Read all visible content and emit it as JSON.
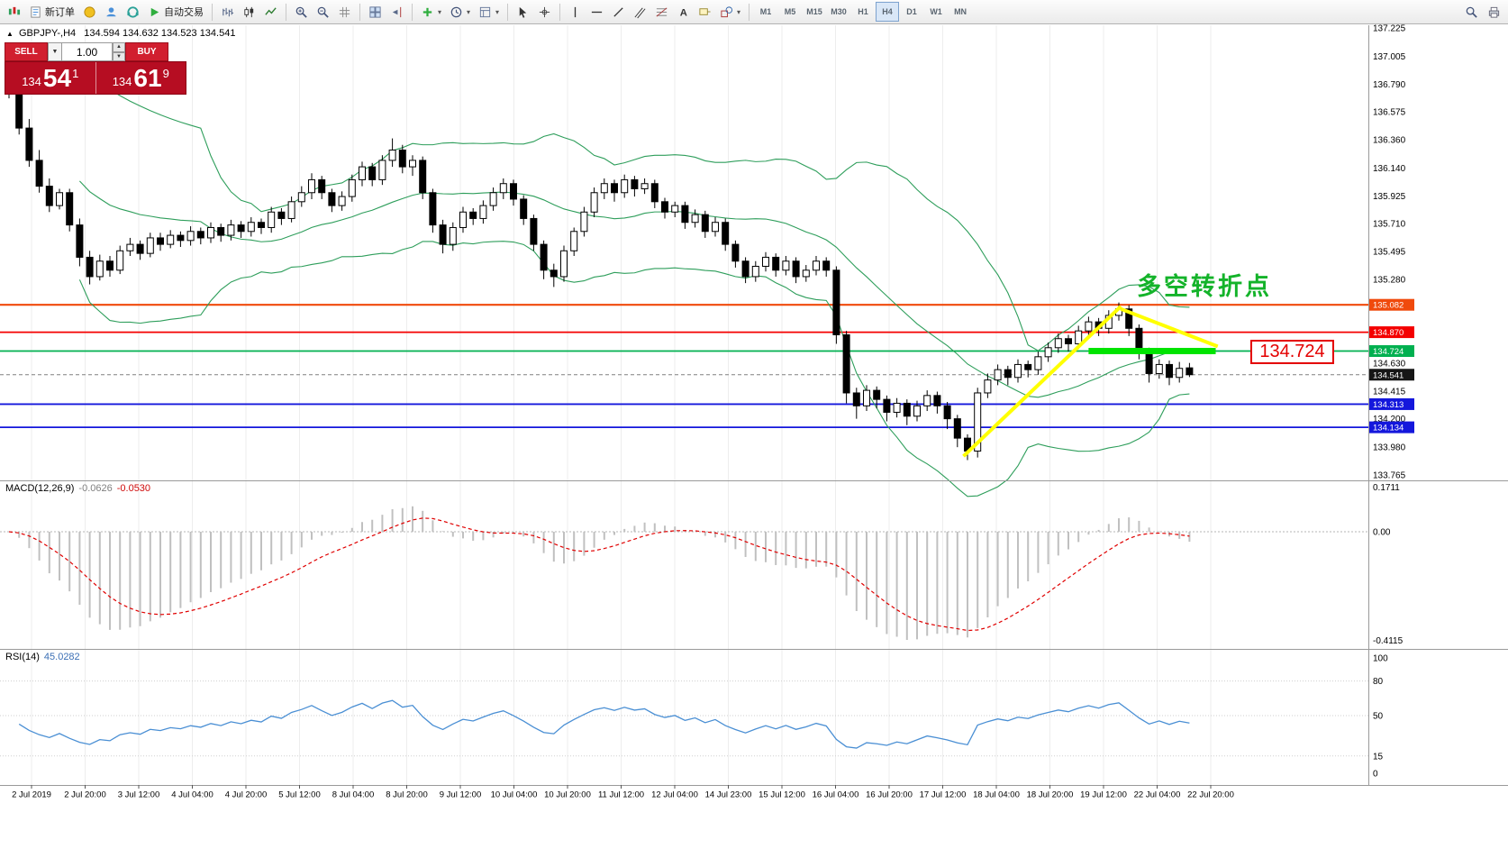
{
  "toolbar": {
    "new_order_label": "新订单",
    "autotrading_label": "自动交易",
    "timeframes": [
      "M1",
      "M5",
      "M15",
      "M30",
      "H1",
      "H4",
      "D1",
      "W1",
      "MN"
    ],
    "active_timeframe": "H4"
  },
  "symbol_header": {
    "symbol": "GBPJPY-,H4",
    "ohlc": "134.594 134.632 134.523 134.541"
  },
  "trade_panel": {
    "sell_label": "SELL",
    "buy_label": "BUY",
    "volume": "1.00",
    "sell_price_prefix": "134",
    "sell_price_big": "54",
    "sell_price_sup": "1",
    "buy_price_prefix": "134",
    "buy_price_big": "61",
    "buy_price_sup": "9"
  },
  "chart_data": {
    "type": "candlestick",
    "symbol": "GBPJPY",
    "timeframe": "H4",
    "title": "GBPJPY-,H4",
    "ohlc_current": {
      "open": 134.594,
      "high": 134.632,
      "low": 134.523,
      "close": 134.541
    },
    "price_axis": {
      "top_price": 137.225,
      "bottom_price": 133.765,
      "grid": "vertical-only"
    },
    "price_ticks": [
      137.225,
      137.005,
      136.79,
      136.575,
      136.36,
      136.14,
      135.925,
      135.71,
      135.495,
      135.28,
      134.63,
      134.415,
      134.2,
      133.98,
      133.765
    ],
    "levels": [
      {
        "price": 135.082,
        "label": "135.082",
        "color": "#f04a0c",
        "width": 2.2
      },
      {
        "price": 134.87,
        "label": "134.870",
        "color": "#f40000",
        "width": 1.8
      },
      {
        "price": 134.724,
        "label": "134.724",
        "color": "#00b050",
        "width": 1.8
      },
      {
        "price": 134.313,
        "label": "134.313",
        "color": "#1417dc",
        "width": 1.8
      },
      {
        "price": 134.134,
        "label": "134.134",
        "color": "#1417dc",
        "width": 1.8
      }
    ],
    "bid": {
      "price": 134.541,
      "label": "134.541",
      "badge_color": "#161616"
    },
    "annotations": {
      "turning_point_text": "多空转折点",
      "price_callout": "134.724",
      "trendline_color": "#ffff00",
      "support_bar_color": "#00e400",
      "trendlines": [
        {
          "i1": 94.6,
          "p1": 133.91,
          "i2": 110.2,
          "p2": 135.07
        },
        {
          "i1": 110.2,
          "p1": 135.05,
          "i2": 119.8,
          "p2": 134.76
        }
      ],
      "support_bar": {
        "price": 134.724,
        "i1": 107,
        "i2": 119.6
      }
    },
    "indicators": {
      "bollinger": {
        "period": 20,
        "deviation": 2,
        "color": "#2e9e5b"
      },
      "macd": {
        "name": "MACD(12,26,9)",
        "value_main": "-0.0626",
        "value_signal": "-0.0530",
        "scale_max": "0.1711",
        "scale_zero": "0.00",
        "scale_min": "-0.4115",
        "histogram_color": "#c0c0c0",
        "signal_color": "#e00000"
      },
      "rsi": {
        "name": "RSI(14)",
        "value": "45.0282",
        "color": "#4a8fd4",
        "scale": [
          100,
          80,
          50,
          15,
          0
        ],
        "grid_levels": [
          80,
          50,
          15
        ]
      }
    },
    "time_labels": [
      "2 Jul 2019",
      "2 Jul 20:00",
      "3 Jul 12:00",
      "4 Jul 04:00",
      "4 Jul 20:00",
      "5 Jul 12:00",
      "8 Jul 04:00",
      "8 Jul 20:00",
      "9 Jul 12:00",
      "10 Jul 04:00",
      "10 Jul 20:00",
      "11 Jul 12:00",
      "12 Jul 04:00",
      "14 Jul 23:00",
      "15 Jul 12:00",
      "16 Jul 04:00",
      "16 Jul 20:00",
      "17 Jul 12:00",
      "18 Jul 04:00",
      "18 Jul 20:00",
      "19 Jul 12:00",
      "22 Jul 04:00",
      "22 Jul 20:00"
    ],
    "candles": [
      [
        136.95,
        137.0,
        136.68,
        136.72
      ],
      [
        136.72,
        136.78,
        136.4,
        136.45
      ],
      [
        136.45,
        136.52,
        136.15,
        136.2
      ],
      [
        136.2,
        136.28,
        135.95,
        136.0
      ],
      [
        136.0,
        136.06,
        135.8,
        135.85
      ],
      [
        135.85,
        135.98,
        135.82,
        135.95
      ],
      [
        135.95,
        135.98,
        135.65,
        135.7
      ],
      [
        135.7,
        135.75,
        135.38,
        135.45
      ],
      [
        135.45,
        135.5,
        135.24,
        135.3
      ],
      [
        135.3,
        135.47,
        135.27,
        135.42
      ],
      [
        135.42,
        135.46,
        135.3,
        135.35
      ],
      [
        135.35,
        135.54,
        135.32,
        135.5
      ],
      [
        135.5,
        135.6,
        135.46,
        135.55
      ],
      [
        135.55,
        135.58,
        135.43,
        135.48
      ],
      [
        135.48,
        135.64,
        135.45,
        135.6
      ],
      [
        135.6,
        135.64,
        135.5,
        135.55
      ],
      [
        135.55,
        135.66,
        135.52,
        135.62
      ],
      [
        135.62,
        135.65,
        135.53,
        135.58
      ],
      [
        135.58,
        135.69,
        135.54,
        135.65
      ],
      [
        135.65,
        135.68,
        135.55,
        135.6
      ],
      [
        135.6,
        135.72,
        135.56,
        135.68
      ],
      [
        135.68,
        135.71,
        135.57,
        135.62
      ],
      [
        135.62,
        135.74,
        135.58,
        135.7
      ],
      [
        135.7,
        135.73,
        135.6,
        135.65
      ],
      [
        135.65,
        135.76,
        135.61,
        135.72
      ],
      [
        135.72,
        135.75,
        135.63,
        135.68
      ],
      [
        135.68,
        135.84,
        135.64,
        135.8
      ],
      [
        135.8,
        135.83,
        135.7,
        135.75
      ],
      [
        135.75,
        135.92,
        135.72,
        135.88
      ],
      [
        135.88,
        136.0,
        135.84,
        135.95
      ],
      [
        135.95,
        136.1,
        135.9,
        136.05
      ],
      [
        136.05,
        136.08,
        135.9,
        135.95
      ],
      [
        135.95,
        135.98,
        135.8,
        135.85
      ],
      [
        135.85,
        135.96,
        135.81,
        135.92
      ],
      [
        135.92,
        136.09,
        135.88,
        136.05
      ],
      [
        136.05,
        136.19,
        136.0,
        136.15
      ],
      [
        136.15,
        136.18,
        136.0,
        136.05
      ],
      [
        136.05,
        136.24,
        136.01,
        136.2
      ],
      [
        136.2,
        136.37,
        136.15,
        136.28
      ],
      [
        136.28,
        136.32,
        136.1,
        136.15
      ],
      [
        136.15,
        136.24,
        136.08,
        136.2
      ],
      [
        136.2,
        136.23,
        135.9,
        135.95
      ],
      [
        135.95,
        135.98,
        135.64,
        135.7
      ],
      [
        135.7,
        135.74,
        135.48,
        135.55
      ],
      [
        135.55,
        135.72,
        135.5,
        135.68
      ],
      [
        135.68,
        135.84,
        135.64,
        135.8
      ],
      [
        135.8,
        135.83,
        135.7,
        135.75
      ],
      [
        135.75,
        135.89,
        135.71,
        135.85
      ],
      [
        135.85,
        135.99,
        135.81,
        135.95
      ],
      [
        135.95,
        136.06,
        135.9,
        136.02
      ],
      [
        136.02,
        136.05,
        135.85,
        135.9
      ],
      [
        135.9,
        135.93,
        135.7,
        135.75
      ],
      [
        135.75,
        135.78,
        135.5,
        135.55
      ],
      [
        135.55,
        135.58,
        135.28,
        135.35
      ],
      [
        135.35,
        135.4,
        135.22,
        135.3
      ],
      [
        135.3,
        135.54,
        135.26,
        135.5
      ],
      [
        135.5,
        135.68,
        135.46,
        135.65
      ],
      [
        135.65,
        135.84,
        135.61,
        135.8
      ],
      [
        135.8,
        135.99,
        135.76,
        135.95
      ],
      [
        135.95,
        136.06,
        135.9,
        136.02
      ],
      [
        136.02,
        136.05,
        135.88,
        135.95
      ],
      [
        135.95,
        136.09,
        135.91,
        136.05
      ],
      [
        136.05,
        136.08,
        135.92,
        135.98
      ],
      [
        135.98,
        136.06,
        135.94,
        136.02
      ],
      [
        136.02,
        136.05,
        135.83,
        135.88
      ],
      [
        135.88,
        135.91,
        135.75,
        135.8
      ],
      [
        135.8,
        135.88,
        135.76,
        135.85
      ],
      [
        135.85,
        135.88,
        135.67,
        135.72
      ],
      [
        135.72,
        135.82,
        135.68,
        135.78
      ],
      [
        135.78,
        135.81,
        135.6,
        135.65
      ],
      [
        135.65,
        135.76,
        135.61,
        135.72
      ],
      [
        135.72,
        135.75,
        135.5,
        135.55
      ],
      [
        135.55,
        135.58,
        135.37,
        135.42
      ],
      [
        135.42,
        135.45,
        135.25,
        135.3
      ],
      [
        135.3,
        135.42,
        135.26,
        135.38
      ],
      [
        135.38,
        135.49,
        135.34,
        135.45
      ],
      [
        135.45,
        135.48,
        135.3,
        135.35
      ],
      [
        135.35,
        135.46,
        135.31,
        135.42
      ],
      [
        135.42,
        135.45,
        135.25,
        135.3
      ],
      [
        135.3,
        135.39,
        135.26,
        135.35
      ],
      [
        135.35,
        135.46,
        135.31,
        135.42
      ],
      [
        135.42,
        135.45,
        135.3,
        135.35
      ],
      [
        135.35,
        135.38,
        134.78,
        134.85
      ],
      [
        134.85,
        134.88,
        134.32,
        134.4
      ],
      [
        134.4,
        134.44,
        134.2,
        134.3
      ],
      [
        134.3,
        134.46,
        134.26,
        134.42
      ],
      [
        134.42,
        134.45,
        134.28,
        134.35
      ],
      [
        134.35,
        134.38,
        134.18,
        134.25
      ],
      [
        134.25,
        134.36,
        134.21,
        134.32
      ],
      [
        134.32,
        134.35,
        134.15,
        134.22
      ],
      [
        134.22,
        134.34,
        134.18,
        134.3
      ],
      [
        134.3,
        134.42,
        134.26,
        134.38
      ],
      [
        134.38,
        134.41,
        134.24,
        134.3
      ],
      [
        134.3,
        134.33,
        134.12,
        134.2
      ],
      [
        134.2,
        134.23,
        133.98,
        134.05
      ],
      [
        134.05,
        134.08,
        133.88,
        133.95
      ],
      [
        133.95,
        134.44,
        133.9,
        134.4
      ],
      [
        134.4,
        134.55,
        134.36,
        134.5
      ],
      [
        134.5,
        134.62,
        134.46,
        134.58
      ],
      [
        134.58,
        134.61,
        134.46,
        134.52
      ],
      [
        134.52,
        134.66,
        134.48,
        134.62
      ],
      [
        134.62,
        134.65,
        134.52,
        134.58
      ],
      [
        134.58,
        134.72,
        134.54,
        134.68
      ],
      [
        134.68,
        134.79,
        134.64,
        134.75
      ],
      [
        134.75,
        134.86,
        134.71,
        134.82
      ],
      [
        134.82,
        134.85,
        134.72,
        134.78
      ],
      [
        134.78,
        134.92,
        134.74,
        134.88
      ],
      [
        134.88,
        134.99,
        134.84,
        134.95
      ],
      [
        134.95,
        134.98,
        134.84,
        134.9
      ],
      [
        134.9,
        135.04,
        134.86,
        135.0
      ],
      [
        135.0,
        135.1,
        134.96,
        135.05
      ],
      [
        135.05,
        135.08,
        134.84,
        134.9
      ],
      [
        134.9,
        134.93,
        134.66,
        134.72
      ],
      [
        134.72,
        134.75,
        134.48,
        134.55
      ],
      [
        134.55,
        134.66,
        134.51,
        134.62
      ],
      [
        134.62,
        134.65,
        134.46,
        134.52
      ],
      [
        134.52,
        134.64,
        134.48,
        134.59
      ],
      [
        134.594,
        134.632,
        134.523,
        134.541
      ]
    ]
  }
}
